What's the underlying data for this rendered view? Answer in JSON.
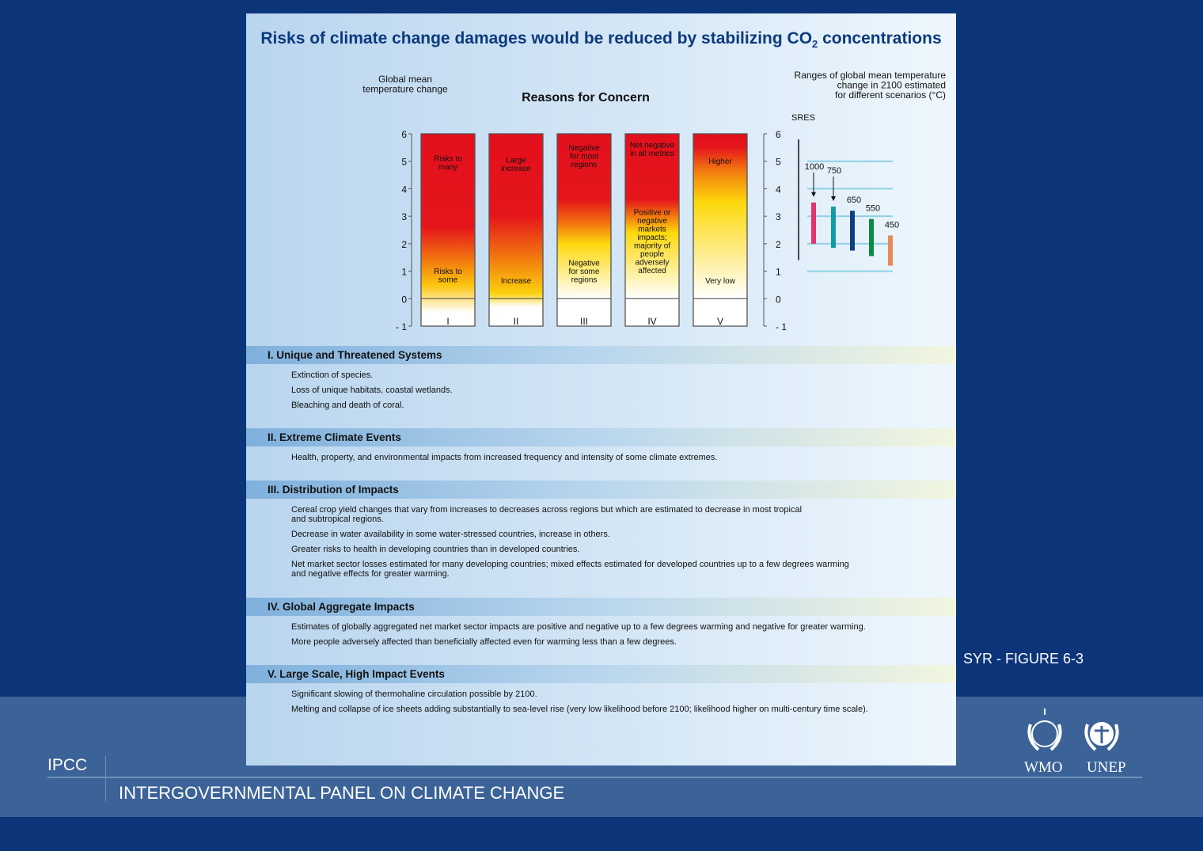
{
  "title": {
    "main": "Risks of climate change damages would be reduced by stabilizing CO",
    "sub": "2",
    "rest": " concentrations"
  },
  "chart_data": {
    "type": "bar",
    "title": "Reasons for Concern",
    "ylabel": "Global mean temperature change",
    "ylim": [
      -1,
      6
    ],
    "yticks": [
      "6",
      "5",
      "4",
      "3",
      "2",
      "1",
      "0",
      "- 1"
    ],
    "categories": [
      "I",
      "II",
      "III",
      "IV",
      "V"
    ],
    "embers": [
      {
        "category": "I",
        "top_label": "Risks to\nmany",
        "bottom_label": "Risks to\nsome",
        "stops": [
          [
            6,
            "#e30f1d"
          ],
          [
            2.6,
            "#e5161b"
          ],
          [
            1.4,
            "#f2780f"
          ],
          [
            0.5,
            "#fcc40c"
          ],
          [
            -0.5,
            "#ffffff"
          ],
          [
            -1,
            "#ffffff"
          ]
        ]
      },
      {
        "category": "II",
        "top_label": "Large\nincrease",
        "bottom_label": "Increase",
        "stops": [
          [
            6,
            "#e30f1d"
          ],
          [
            3,
            "#e5161b"
          ],
          [
            1.5,
            "#f2780f"
          ],
          [
            0.2,
            "#fcd00c"
          ],
          [
            -0.3,
            "#ffffff"
          ],
          [
            -1,
            "#ffffff"
          ]
        ]
      },
      {
        "category": "III",
        "top_label": "Negative\nfor most\nregions",
        "bottom_label": "Negative\nfor some\nregions",
        "stops": [
          [
            6,
            "#e30f1d"
          ],
          [
            3.6,
            "#e5161b"
          ],
          [
            2.7,
            "#f2780f"
          ],
          [
            2,
            "#fdd80c"
          ],
          [
            0,
            "#ffffff"
          ],
          [
            -1,
            "#ffffff"
          ]
        ]
      },
      {
        "category": "IV",
        "top_label": "Net negative\nin all metrics",
        "bottom_label": "Positive or\nnegative\nmarkets\nimpacts;\nmajority of\npeople\nadversely\naffected",
        "stops": [
          [
            6,
            "#e30f1d"
          ],
          [
            3.6,
            "#e5161b"
          ],
          [
            3,
            "#f2780f"
          ],
          [
            2.4,
            "#fdd80c"
          ],
          [
            0,
            "#ffffff"
          ],
          [
            -1,
            "#ffffff"
          ]
        ]
      },
      {
        "category": "V",
        "top_label": "Higher",
        "bottom_label": "Very low",
        "stops": [
          [
            6,
            "#e30f1d"
          ],
          [
            5.5,
            "#e5161b"
          ],
          [
            4.6,
            "#f2800f"
          ],
          [
            3.5,
            "#fdd80c"
          ],
          [
            0,
            "#ffffff"
          ],
          [
            -1,
            "#ffffff"
          ]
        ]
      }
    ],
    "scenarios": {
      "title": "Ranges of global mean temperature\nchange in 2100 estimated\nfor different scenarios (°C)",
      "sres_label": "SRES",
      "sres_range": [
        1.4,
        5.8
      ],
      "gridlines": [
        1,
        2,
        3,
        4,
        5
      ],
      "bars": [
        {
          "label": "1000",
          "range": [
            2.0,
            3.5
          ],
          "color": "#e0346a",
          "arrow": true
        },
        {
          "label": "750",
          "range": [
            1.85,
            3.35
          ],
          "color": "#129aa6",
          "arrow": true
        },
        {
          "label": "650",
          "range": [
            1.75,
            3.2
          ],
          "color": "#103f86",
          "arrow": false
        },
        {
          "label": "550",
          "range": [
            1.55,
            2.9
          ],
          "color": "#0b8a43",
          "arrow": false
        },
        {
          "label": "450",
          "range": [
            1.2,
            2.3
          ],
          "color": "#e8885a",
          "arrow": false
        }
      ]
    }
  },
  "sections": [
    {
      "heading": "I. Unique and Threatened Systems",
      "items": [
        "Extinction of species.",
        "Loss of unique habitats, coastal wetlands.",
        "Bleaching and death of coral."
      ]
    },
    {
      "heading": "II. Extreme Climate Events",
      "items": [
        "Health, property, and environmental impacts from increased frequency and intensity of some climate extremes."
      ]
    },
    {
      "heading": "III. Distribution of Impacts",
      "items": [
        "Cereal crop yield changes that vary from increases to decreases across regions but which are estimated to decrease in most tropical\nand subtropical regions.",
        "Decrease in water availability in some water-stressed countries, increase in others.",
        "Greater risks to health in developing countries than in developed countries.",
        "Net market sector losses estimated for many developing countries; mixed effects estimated for developed countries up to a few degrees warming\nand negative effects for greater warming."
      ]
    },
    {
      "heading": "IV. Global Aggregate Impacts",
      "items": [
        "Estimates of globally aggregated net market sector impacts are positive and negative up to a few degrees warming and negative for greater warming.",
        "More people adversely affected than beneficially affected even for warming less than a few degrees."
      ]
    },
    {
      "heading": "V. Large Scale, High Impact Events",
      "items": [
        "Significant slowing of thermohaline circulation possible by 2100.",
        "Melting and collapse of ice sheets adding substantially to sea-level rise (very low likelihood before 2100; likelihood higher on multi-century time scale)."
      ]
    }
  ],
  "figure_ref": "SYR - FIGURE 6-3",
  "footer": {
    "ipcc": "IPCC",
    "full_name": "INTERGOVERNMENTAL PANEL ON CLIMATE CHANGE",
    "logos": [
      "WMO",
      "UNEP"
    ]
  }
}
